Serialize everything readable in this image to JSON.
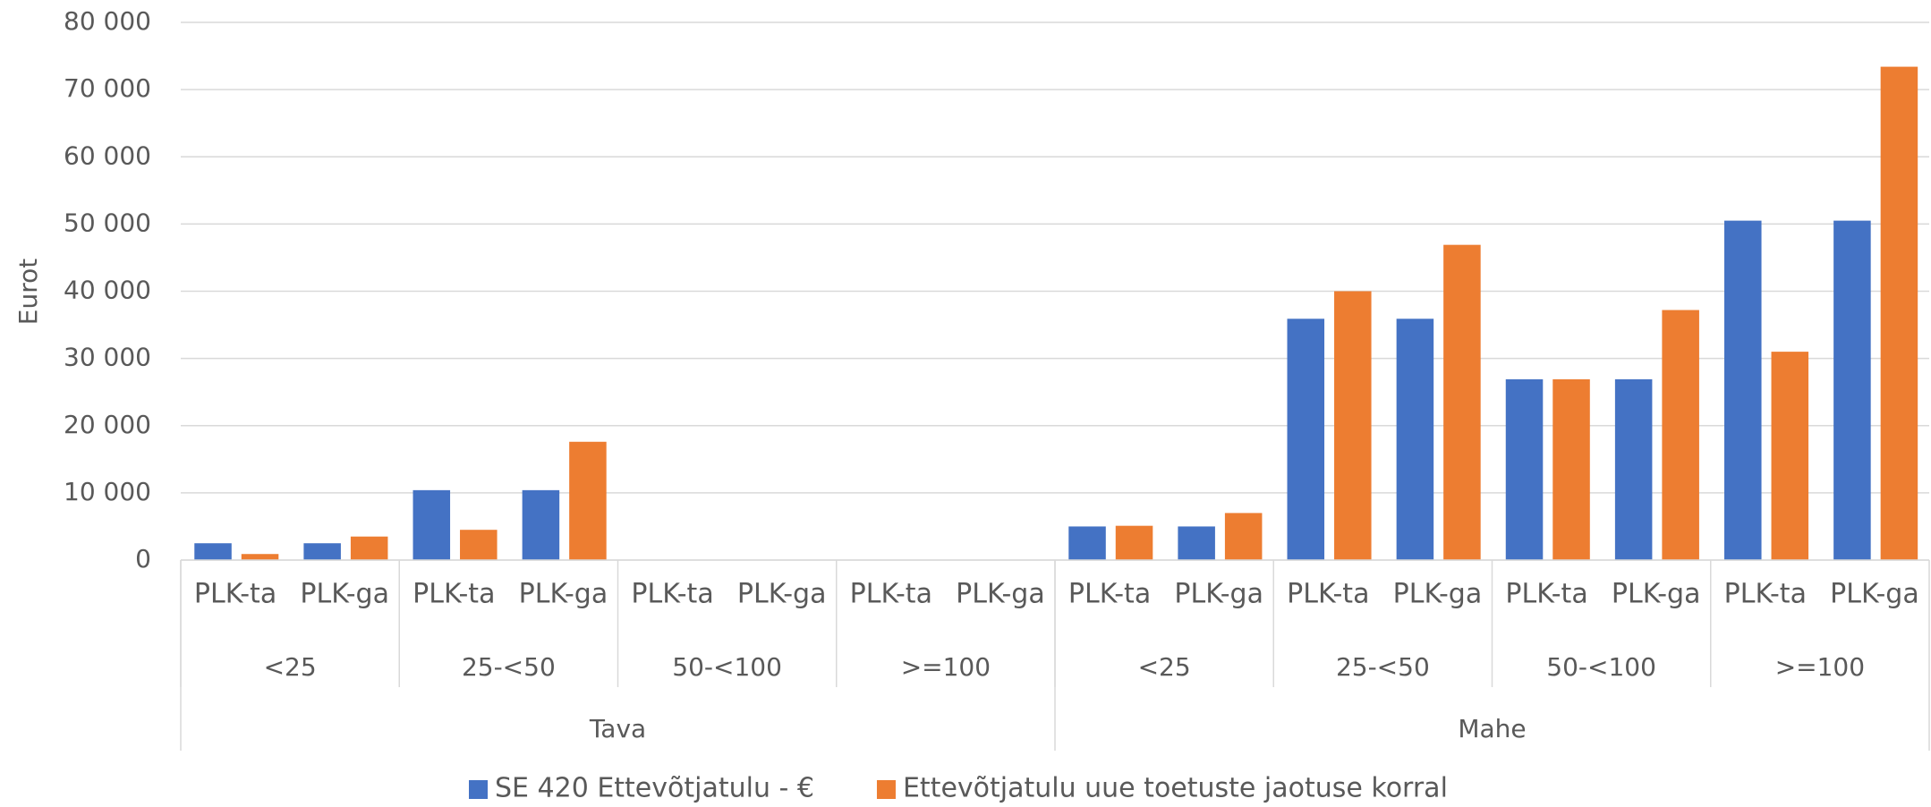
{
  "chart_data": {
    "type": "bar",
    "y_label": "Eurot",
    "categories": [
      "PLK-ta",
      "PLK-ga",
      "PLK-ta",
      "PLK-ga",
      "PLK-ta",
      "PLK-ga",
      "PLK-ta",
      "PLK-ga",
      "PLK-ta",
      "PLK-ga",
      "PLK-ta",
      "PLK-ga",
      "PLK-ta",
      "PLK-ga",
      "PLK-ta",
      "PLK-ga"
    ],
    "subgroups": [
      "<25",
      "25-<50",
      "50-<100",
      ">=100",
      "<25",
      "25-<50",
      "50-<100",
      ">=100"
    ],
    "groups": [
      "Tava",
      "Mahe"
    ],
    "series": [
      {
        "name": "SE 420 Ettevõtjatulu - €",
        "color": "#4472c4",
        "values": [
          2500,
          2500,
          10400,
          10400,
          0,
          0,
          0,
          0,
          5000,
          5000,
          35900,
          35900,
          26900,
          26900,
          50500,
          50500
        ]
      },
      {
        "name": "Ettevõtjatulu uue toetuste jaotuse korral",
        "color": "#ed7d31",
        "values": [
          900,
          3500,
          4500,
          17600,
          0,
          0,
          0,
          0,
          5100,
          7000,
          40000,
          46900,
          26900,
          37200,
          31000,
          73400
        ]
      }
    ],
    "ylim": [
      0,
      80000
    ],
    "yticks": [
      0,
      {
        "value": 10000,
        "label": "10 000"
      },
      {
        "value": 20000,
        "label": "20 000"
      },
      {
        "value": 30000,
        "label": "30 000"
      },
      {
        "value": 40000,
        "label": "40 000"
      },
      {
        "value": 50000,
        "label": "50 000"
      },
      {
        "value": 60000,
        "label": "60 000"
      },
      {
        "value": 70000,
        "label": "70 000"
      },
      {
        "value": 80000,
        "label": "80 000"
      }
    ],
    "grid": true,
    "legend": "bottom"
  }
}
